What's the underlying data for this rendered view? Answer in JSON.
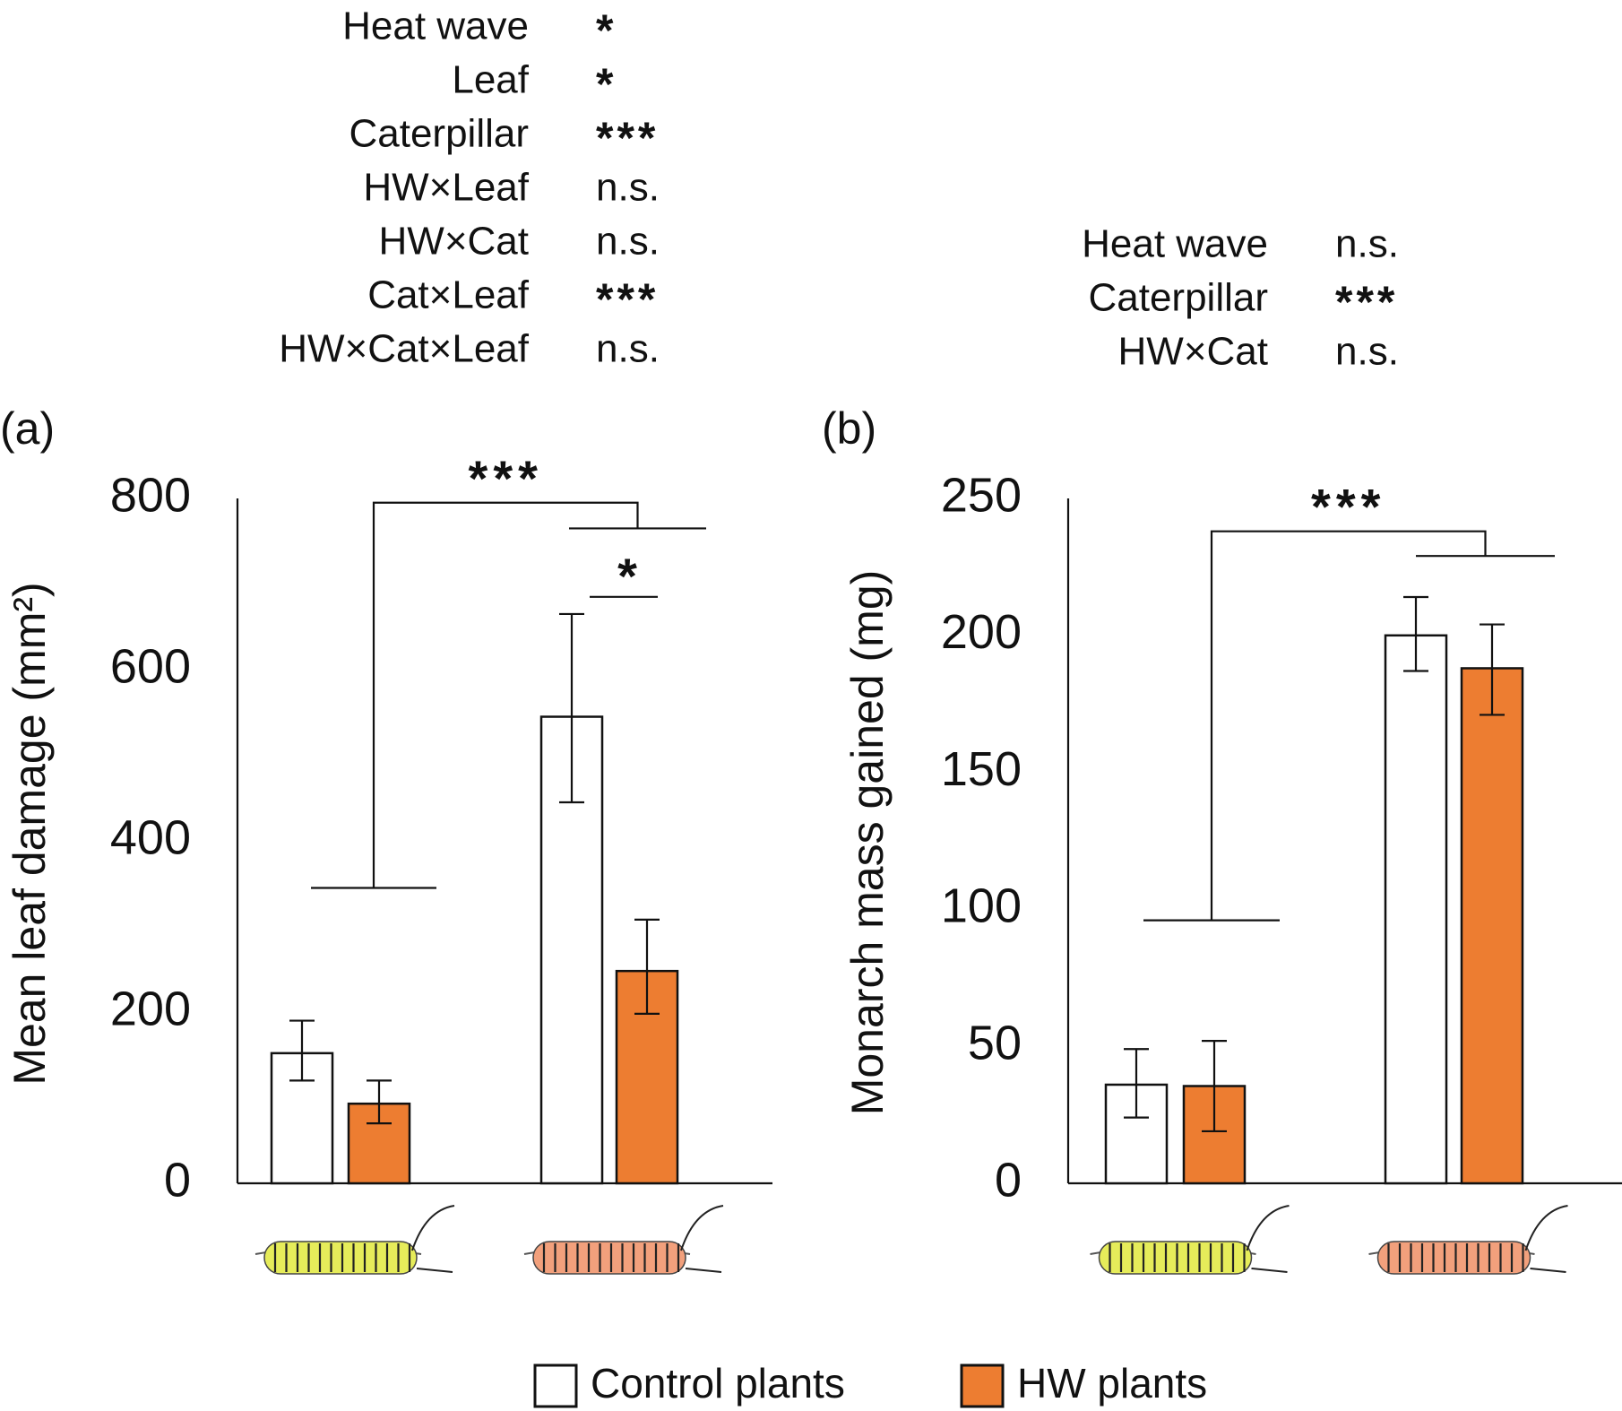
{
  "colors": {
    "control_fill": "#ffffff",
    "hw_fill": "#ed7d31",
    "stroke": "#111111",
    "caterpillar_yellow": "#e6ec5a",
    "caterpillar_orange": "#f2a07c"
  },
  "legend": {
    "items": [
      {
        "label": "Control plants",
        "color": "#ffffff"
      },
      {
        "label": "HW plants",
        "color": "#ed7d31"
      }
    ],
    "placement": "bottom-center"
  },
  "chart_data": [
    {
      "panel_label": "(a)",
      "type": "bar",
      "ylabel": "Mean leaf damage (mm²)",
      "ylim": [
        0,
        800
      ],
      "yticks": [
        0,
        200,
        400,
        600,
        800
      ],
      "grid": false,
      "categories": [
        "yellow caterpillar",
        "orange caterpillar"
      ],
      "category_icons": [
        "caterpillar-yellow",
        "caterpillar-orange"
      ],
      "series": [
        {
          "name": "Control plants",
          "values": [
            152,
            545
          ],
          "errors": [
            [
              120,
              190
            ],
            [
              445,
              665
            ]
          ]
        },
        {
          "name": "HW plants",
          "values": [
            93,
            248
          ],
          "errors": [
            [
              70,
              120
            ],
            [
              198,
              308
            ]
          ]
        }
      ],
      "stats": [
        {
          "term": "Heat wave",
          "sig": "*"
        },
        {
          "term": "Leaf",
          "sig": "*"
        },
        {
          "term": "Caterpillar",
          "sig": "***"
        },
        {
          "term": "HW×Leaf",
          "sig": "n.s."
        },
        {
          "term": "HW×Cat",
          "sig": "n.s."
        },
        {
          "term": "Cat×Leaf",
          "sig": "***"
        },
        {
          "term": "HW×Cat×Leaf",
          "sig": "n.s."
        }
      ],
      "brackets": [
        {
          "type": "between-groups",
          "label": "***",
          "y_left": 345,
          "y_right": 765,
          "y_top": 795
        },
        {
          "type": "within-group",
          "group": 1,
          "label": "*",
          "y": 685
        }
      ]
    },
    {
      "panel_label": "(b)",
      "type": "bar",
      "ylabel": "Monarch mass gained (mg)",
      "ylim": [
        0,
        250
      ],
      "yticks": [
        0,
        50,
        100,
        150,
        200,
        250
      ],
      "grid": false,
      "categories": [
        "yellow caterpillar",
        "orange caterpillar"
      ],
      "category_icons": [
        "caterpillar-yellow",
        "caterpillar-orange"
      ],
      "series": [
        {
          "name": "Control plants",
          "values": [
            36,
            200
          ],
          "errors": [
            [
              24,
              49
            ],
            [
              187,
              214
            ]
          ]
        },
        {
          "name": "HW plants",
          "values": [
            35.5,
            188
          ],
          "errors": [
            [
              19,
              52
            ],
            [
              171,
              204
            ]
          ]
        }
      ],
      "stats": [
        {
          "term": "Heat wave",
          "sig": "n.s."
        },
        {
          "term": "Caterpillar",
          "sig": "***"
        },
        {
          "term": "HW×Cat",
          "sig": "n.s."
        }
      ],
      "brackets": [
        {
          "type": "between-groups",
          "label": "***",
          "y_left": 96,
          "y_right": 229,
          "y_top": 238
        }
      ]
    }
  ]
}
